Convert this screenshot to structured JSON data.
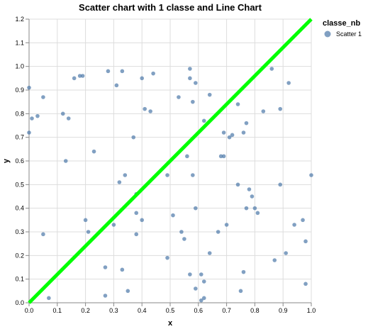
{
  "chart_data": {
    "type": "scatter",
    "title": "Scatter chart with 1 classe and Line Chart",
    "xlabel": "x",
    "ylabel": "y",
    "xlim": [
      0,
      1
    ],
    "ylim": [
      0,
      1.2
    ],
    "xticks": [
      "0.0",
      "0.1",
      "0.2",
      "0.3",
      "0.4",
      "0.5",
      "0.6",
      "0.7",
      "0.8",
      "0.9",
      "1.0"
    ],
    "yticks": [
      "0.0",
      "0.1",
      "0.2",
      "0.3",
      "0.4",
      "0.5",
      "0.6",
      "0.7",
      "0.8",
      "0.9",
      "1.0",
      "1.1",
      "1.2"
    ],
    "grid": true,
    "legend": {
      "title": "classe_nb",
      "position": "top-right",
      "entries": [
        "Scatter 1"
      ]
    },
    "colors": {
      "scatter": "#4c78a8",
      "line": "#00ff00",
      "grid": "#dddddd",
      "axis": "#888888"
    },
    "series": [
      {
        "name": "Scatter 1",
        "type": "scatter",
        "points": [
          [
            0.0,
            0.91
          ],
          [
            0.0,
            0.72
          ],
          [
            0.01,
            0.78
          ],
          [
            0.03,
            0.79
          ],
          [
            0.05,
            0.87
          ],
          [
            0.05,
            0.29
          ],
          [
            0.07,
            0.02
          ],
          [
            0.12,
            0.8
          ],
          [
            0.13,
            0.6
          ],
          [
            0.14,
            0.78
          ],
          [
            0.16,
            0.95
          ],
          [
            0.18,
            0.96
          ],
          [
            0.19,
            0.96
          ],
          [
            0.2,
            0.35
          ],
          [
            0.21,
            0.3
          ],
          [
            0.23,
            0.64
          ],
          [
            0.27,
            0.03
          ],
          [
            0.27,
            0.15
          ],
          [
            0.28,
            0.98
          ],
          [
            0.3,
            0.33
          ],
          [
            0.31,
            0.92
          ],
          [
            0.32,
            0.51
          ],
          [
            0.33,
            0.14
          ],
          [
            0.33,
            0.98
          ],
          [
            0.34,
            0.54
          ],
          [
            0.35,
            0.05
          ],
          [
            0.37,
            0.7
          ],
          [
            0.38,
            0.46
          ],
          [
            0.38,
            0.38
          ],
          [
            0.38,
            0.29
          ],
          [
            0.4,
            0.95
          ],
          [
            0.4,
            0.35
          ],
          [
            0.41,
            0.82
          ],
          [
            0.43,
            0.81
          ],
          [
            0.44,
            0.97
          ],
          [
            0.49,
            0.54
          ],
          [
            0.49,
            0.19
          ],
          [
            0.51,
            0.37
          ],
          [
            0.53,
            0.87
          ],
          [
            0.54,
            0.3
          ],
          [
            0.55,
            0.27
          ],
          [
            0.56,
            0.62
          ],
          [
            0.57,
            0.99
          ],
          [
            0.57,
            0.95
          ],
          [
            0.57,
            0.12
          ],
          [
            0.58,
            0.85
          ],
          [
            0.58,
            0.54
          ],
          [
            0.59,
            0.4
          ],
          [
            0.59,
            0.06
          ],
          [
            0.59,
            0.93
          ],
          [
            0.61,
            0.12
          ],
          [
            0.61,
            0.01
          ],
          [
            0.62,
            0.02
          ],
          [
            0.62,
            0.09
          ],
          [
            0.62,
            0.77
          ],
          [
            0.64,
            0.21
          ],
          [
            0.64,
            0.88
          ],
          [
            0.67,
            0.3
          ],
          [
            0.68,
            0.62
          ],
          [
            0.69,
            0.72
          ],
          [
            0.69,
            0.62
          ],
          [
            0.7,
            0.33
          ],
          [
            0.71,
            0.7
          ],
          [
            0.72,
            0.71
          ],
          [
            0.74,
            0.5
          ],
          [
            0.74,
            0.84
          ],
          [
            0.75,
            0.05
          ],
          [
            0.76,
            0.13
          ],
          [
            0.76,
            0.72
          ],
          [
            0.77,
            0.76
          ],
          [
            0.77,
            0.4
          ],
          [
            0.78,
            0.48
          ],
          [
            0.79,
            0.45
          ],
          [
            0.8,
            0.4
          ],
          [
            0.81,
            0.38
          ],
          [
            0.83,
            0.81
          ],
          [
            0.86,
            0.99
          ],
          [
            0.87,
            0.18
          ],
          [
            0.89,
            0.82
          ],
          [
            0.89,
            0.5
          ],
          [
            0.91,
            0.21
          ],
          [
            0.92,
            0.93
          ],
          [
            0.94,
            0.33
          ],
          [
            0.97,
            0.35
          ],
          [
            0.98,
            0.26
          ],
          [
            0.98,
            0.08
          ],
          [
            1.0,
            0.54
          ]
        ]
      },
      {
        "name": "",
        "type": "line",
        "points": [
          [
            0.0,
            0.0
          ],
          [
            1.0,
            1.2
          ]
        ]
      }
    ]
  }
}
